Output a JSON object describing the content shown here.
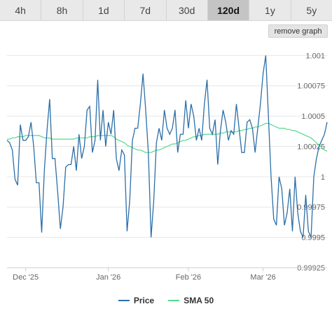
{
  "ranges": [
    {
      "label": "4h",
      "active": false
    },
    {
      "label": "8h",
      "active": false
    },
    {
      "label": "1d",
      "active": false
    },
    {
      "label": "7d",
      "active": false
    },
    {
      "label": "30d",
      "active": false
    },
    {
      "label": "120d",
      "active": true
    },
    {
      "label": "1y",
      "active": false
    },
    {
      "label": "5y",
      "active": false
    }
  ],
  "remove_graph_label": "remove graph",
  "colors": {
    "price": "#2c6fa8",
    "sma": "#55d98a",
    "grid": "#e6e6e6"
  },
  "chart_data": {
    "type": "line",
    "x_tick_labels": [
      "Dec '25",
      "Jan '26",
      "Feb '26",
      "Mar '26"
    ],
    "x_tick_positions": [
      7,
      38,
      68,
      96
    ],
    "x_range": [
      0,
      120
    ],
    "y_tick_labels": [
      "0.99925",
      "0.9995",
      "0.99975",
      "1",
      "1.00025",
      "1.0005",
      "1.00075",
      "1.001"
    ],
    "y_ticks": [
      0.99925,
      0.9995,
      0.99975,
      1.0,
      1.00025,
      1.0005,
      1.00075,
      1.001
    ],
    "ylim": [
      0.99925,
      1.0011
    ],
    "grid": true,
    "legend_position": "bottom",
    "series": [
      {
        "name": "Price",
        "values": [
          1.0003,
          1.00028,
          1.00022,
          0.99998,
          0.99993,
          1.00043,
          1.0003,
          1.0003,
          1.00033,
          1.00045,
          1.00025,
          0.99995,
          0.99995,
          0.99954,
          1.00005,
          1.00038,
          1.00064,
          1.00015,
          1.00015,
          0.99987,
          0.99957,
          0.99975,
          1.00008,
          1.0001,
          1.0001,
          1.00025,
          1.00005,
          1.00035,
          1.00015,
          1.00025,
          1.00055,
          1.00058,
          1.0002,
          1.0003,
          1.0008,
          1.0003,
          1.00055,
          1.00025,
          1.00045,
          1.00035,
          1.00055,
          1.00015,
          1.00005,
          1.00022,
          1.00018,
          0.99955,
          0.9998,
          1.0003,
          1.0004,
          1.0004,
          1.0006,
          1.00085,
          1.00055,
          1.0002,
          0.9995,
          0.9998,
          1.00028,
          1.0004,
          1.0003,
          1.00055,
          1.0004,
          1.00035,
          1.0004,
          1.00055,
          1.0002,
          1.00035,
          1.00035,
          1.00063,
          1.0004,
          1.0006,
          1.0005,
          1.0003,
          1.0004,
          1.0003,
          1.0006,
          1.0008,
          1.0004,
          1.00035,
          1.00047,
          1.0001,
          1.00038,
          1.00055,
          1.00045,
          1.0003,
          1.00038,
          1.00035,
          1.0006,
          1.0004,
          1.0002,
          1.0002,
          1.00045,
          1.00047,
          1.0004,
          1.0002,
          1.0004,
          1.0006,
          1.00085,
          1.001,
          1.0005,
          1.0,
          0.99965,
          0.9996,
          1.0,
          0.9999,
          0.9996,
          0.9997,
          0.9999,
          0.99955,
          1.0,
          0.9997,
          0.99955,
          0.9995,
          0.99985,
          0.99955,
          0.9995,
          1.0,
          1.00015,
          1.00025,
          1.0003,
          1.00035,
          1.00045
        ],
        "values_note": ""
      },
      {
        "name": "SMA 50",
        "values": [
          1.00031,
          1.00031,
          1.00032,
          1.00032,
          1.00033,
          1.00033,
          1.00033,
          1.00034,
          1.00034,
          1.00034,
          1.00034,
          1.00034,
          1.00034,
          1.00033,
          1.00032,
          1.00032,
          1.00032,
          1.00031,
          1.00031,
          1.00031,
          1.00031,
          1.00031,
          1.00031,
          1.00031,
          1.00031,
          1.00031,
          1.00032,
          1.00032,
          1.00032,
          1.00032,
          1.00032,
          1.00033,
          1.00033,
          1.00033,
          1.00034,
          1.00034,
          1.00034,
          1.00034,
          1.00034,
          1.00034,
          1.00033,
          1.00031,
          1.0003,
          1.00029,
          1.00028,
          1.00026,
          1.00025,
          1.00024,
          1.00023,
          1.00022,
          1.00022,
          1.00021,
          1.0002,
          1.0002,
          1.0002,
          1.00021,
          1.00022,
          1.00022,
          1.00023,
          1.00024,
          1.00025,
          1.00026,
          1.00027,
          1.00027,
          1.00028,
          1.00029,
          1.0003,
          1.0003,
          1.00031,
          1.00032,
          1.00033,
          1.00033,
          1.00034,
          1.00034,
          1.00035,
          1.00035,
          1.00035,
          1.00035,
          1.00035,
          1.00035,
          1.00036,
          1.00036,
          1.00037,
          1.00037,
          1.00037,
          1.00037,
          1.00037,
          1.00038,
          1.00038,
          1.00039,
          1.00039,
          1.0004,
          1.0004,
          1.00041,
          1.00041,
          1.00042,
          1.00043,
          1.00044,
          1.00044,
          1.00043,
          1.00042,
          1.00041,
          1.0004,
          1.0004,
          1.0004,
          1.00039,
          1.00039,
          1.00038,
          1.00038,
          1.00037,
          1.00036,
          1.00035,
          1.00034,
          1.00033,
          1.00032,
          1.0003,
          1.00028,
          1.00026,
          1.00024,
          1.00022,
          1.00021
        ]
      }
    ]
  }
}
